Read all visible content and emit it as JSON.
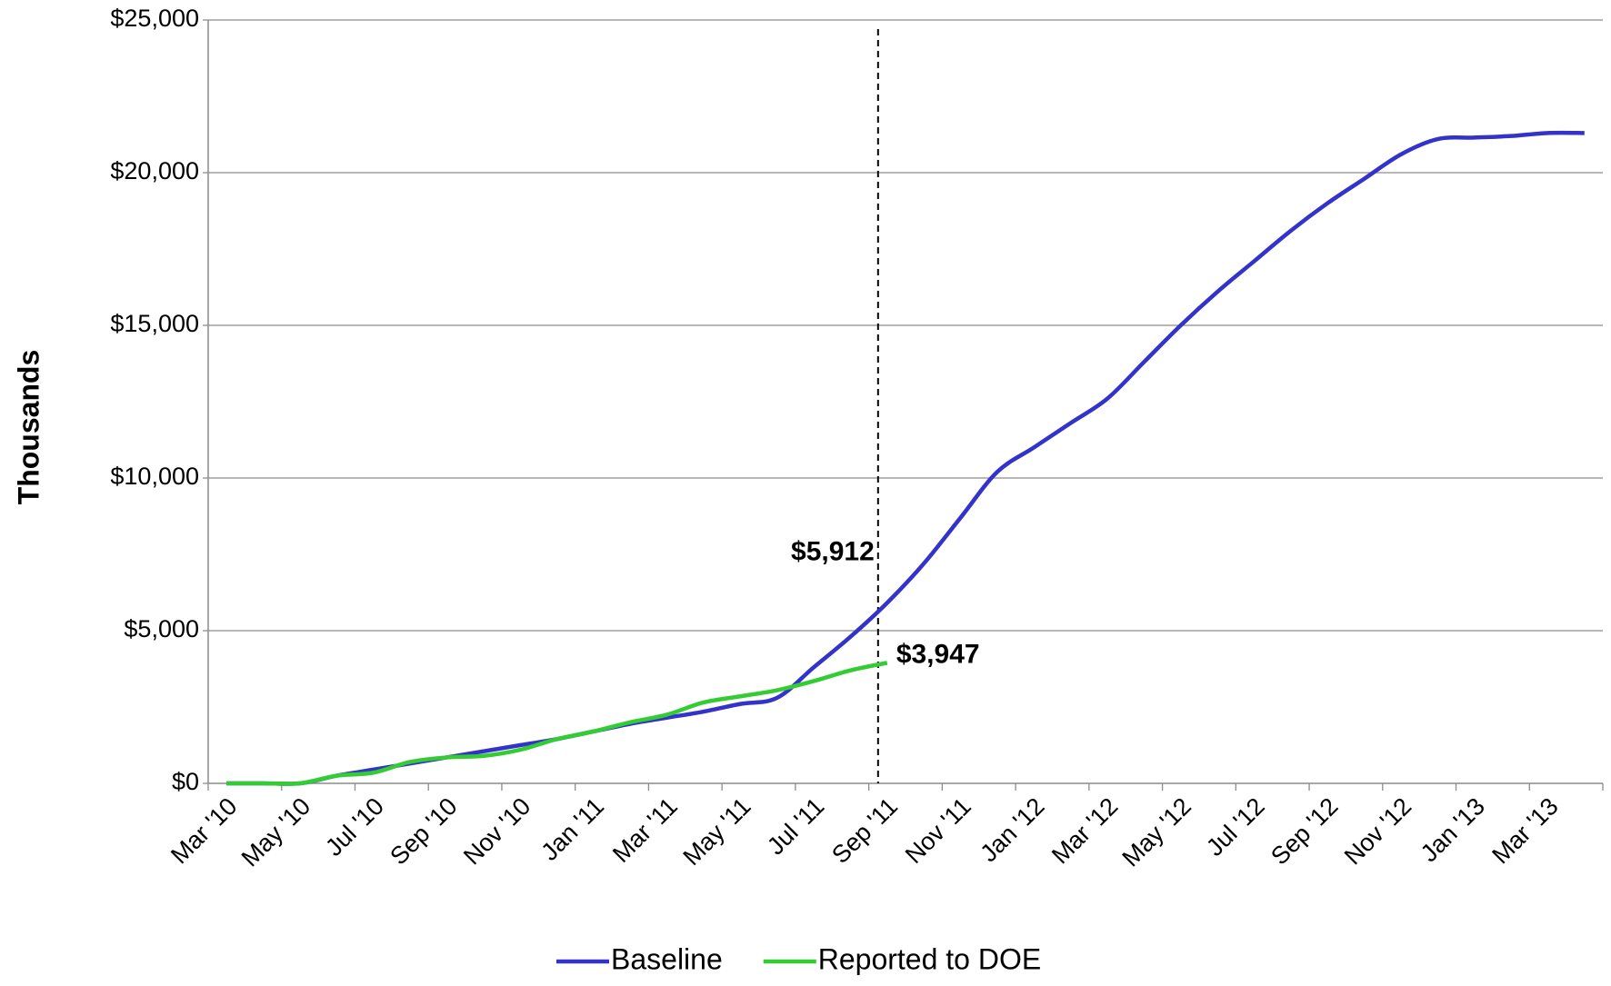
{
  "chart_data": {
    "type": "line",
    "y_label": "Thousands",
    "categories": [
      "Mar '10",
      null,
      "May '10",
      null,
      "Jul '10",
      null,
      "Sep '10",
      null,
      "Nov '10",
      null,
      "Jan '11",
      null,
      "Mar '11",
      null,
      "May '11",
      null,
      "Jul '11",
      null,
      "Sep '11",
      null,
      "Nov '11",
      null,
      "Jan '12",
      null,
      "Mar '12",
      null,
      "May '12",
      null,
      "Jul '12",
      null,
      "Sep '12",
      null,
      "Nov '12",
      null,
      "Jan '13",
      null,
      "Mar '13",
      null
    ],
    "series": [
      {
        "name": "Baseline",
        "color": "#3333cc",
        "values": [
          0,
          0,
          0,
          250,
          450,
          650,
          850,
          1050,
          1250,
          1450,
          1700,
          1950,
          2150,
          2350,
          2600,
          2800,
          3800,
          4800,
          5912,
          7200,
          8700,
          10200,
          11000,
          11800,
          12600,
          13800,
          15000,
          16100,
          17100,
          18100,
          19000,
          19800,
          20600,
          21100,
          21150,
          21200,
          21300,
          21300
        ],
        "value_labels": [
          null,
          null,
          null,
          null,
          null,
          null,
          null,
          null,
          null,
          null,
          null,
          null,
          null,
          null,
          null,
          null,
          null,
          null,
          "$5,912",
          null,
          null,
          null,
          null,
          null,
          null,
          null,
          null,
          null,
          null,
          null,
          null,
          null,
          null,
          null,
          null,
          null,
          null,
          null
        ]
      },
      {
        "name": "Reported to DOE",
        "color": "#33cc33",
        "values": [
          0,
          0,
          0,
          250,
          350,
          700,
          850,
          900,
          1100,
          1450,
          1700,
          2000,
          2250,
          2650,
          2850,
          3050,
          3350,
          3700,
          3947,
          null,
          null,
          null,
          null,
          null,
          null,
          null,
          null,
          null,
          null,
          null,
          null,
          null,
          null,
          null,
          null,
          null,
          null,
          null
        ],
        "value_labels": [
          null,
          null,
          null,
          null,
          null,
          null,
          null,
          null,
          null,
          null,
          null,
          null,
          null,
          null,
          null,
          null,
          null,
          null,
          "$3,947",
          null,
          null,
          null,
          null,
          null,
          null,
          null,
          null,
          null,
          null,
          null,
          null,
          null,
          null,
          null,
          null,
          null,
          null,
          null
        ]
      }
    ],
    "ylim": [
      0,
      25000
    ],
    "yticks": [
      {
        "value": 0,
        "label": "$0"
      },
      {
        "value": 5000,
        "label": "$5,000"
      },
      {
        "value": 10000,
        "label": "$10,000"
      },
      {
        "value": 15000,
        "label": "$15,000"
      },
      {
        "value": 20000,
        "label": "$20,000"
      },
      {
        "value": 25000,
        "label": "$25,000"
      }
    ],
    "grid": true,
    "legend": "bottom"
  }
}
